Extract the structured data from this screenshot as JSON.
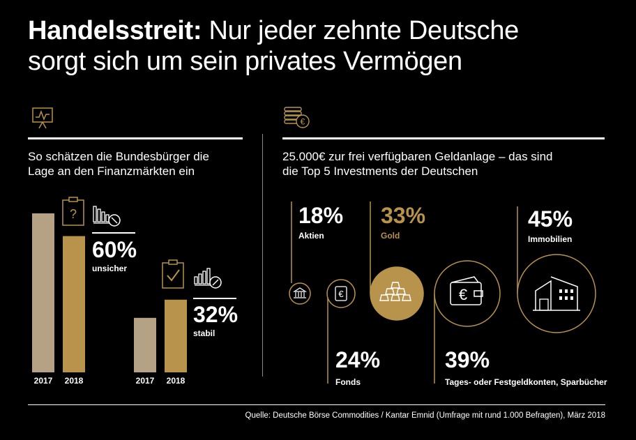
{
  "colors": {
    "background": "#000000",
    "gold": "#b8934b",
    "beige": "#b5a183",
    "text": "#ffffff"
  },
  "title": {
    "bold": "Handelsstreit:",
    "rest": " Nur jeder zehnte Deutsche",
    "line2": "sorgt sich um sein privates Vermögen"
  },
  "left": {
    "icon": "presentation-chart-icon",
    "subtitle_line1": "So schätzen die Bundesbürger die",
    "subtitle_line2": "Lage an den Finanzmärkten ein"
  },
  "right": {
    "icon": "coins-euro-icon",
    "subtitle_line1": "25.000€ zur frei verfügbaren Geldanlage – das sind",
    "subtitle_line2": "die Top 5 Investments der Deutschen"
  },
  "chart_data": [
    {
      "type": "bar",
      "series": [
        {
          "name": "2017",
          "values": [
            null,
            null
          ]
        },
        {
          "name": "2018",
          "values": [
            60,
            32
          ]
        }
      ],
      "groups": [
        {
          "label": "unsicher",
          "value_text": "60%",
          "icon": "clipboard-question-icon",
          "trend_icon": "chart-down-icon",
          "years": [
            "2017",
            "2018"
          ],
          "values": [
            70,
            60
          ]
        },
        {
          "label": "stabil",
          "value_text": "32%",
          "icon": "clipboard-check-icon",
          "trend_icon": "chart-up-icon",
          "years": [
            "2017",
            "2018"
          ],
          "values": [
            24,
            32
          ]
        }
      ]
    },
    {
      "type": "bar",
      "categories": [
        "Aktien",
        "Fonds",
        "Gold",
        "Tages- oder Festgeldkonten, Sparbücher",
        "Immobilien"
      ],
      "values": [
        18,
        24,
        33,
        39,
        45
      ],
      "value_texts": [
        "18%",
        "24%",
        "33%",
        "39%",
        "45%"
      ],
      "icons": [
        "bank-icon",
        "euro-coin-icon",
        "gold-bars-icon",
        "wallet-icon",
        "house-icon"
      ],
      "highlight": "Gold"
    }
  ],
  "source": "Quelle: Deutsche Börse Commodities / Kantar Emnid (Umfrage mit rund 1.000 Befragten), März 2018"
}
